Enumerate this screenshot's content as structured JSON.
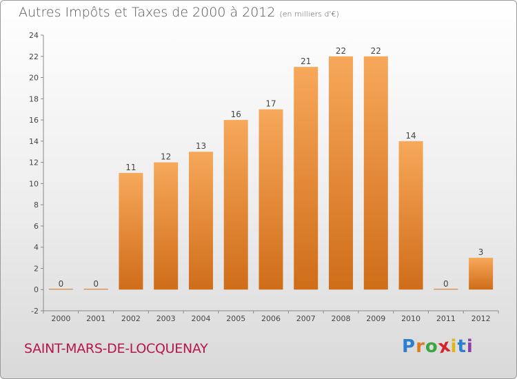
{
  "title": "Autres Impôts et Taxes de 2000 à 2012",
  "unit": "(en milliers d'€)",
  "commune": "SAINT-MARS-DE-LOCQUENAY",
  "brand": {
    "letters": [
      "P",
      "r",
      "o",
      "x",
      "i",
      "t",
      "i"
    ],
    "colors": [
      "#2a7fd0",
      "#e07a1c",
      "#3aa541",
      "#d4232d",
      "#e2b418",
      "#2a7fd0",
      "#8a3fa6"
    ]
  },
  "colors": {
    "bar_light": "#f7a85a",
    "bar_dark": "#cf6d19",
    "axis": "#888888",
    "grid": "#cfcfcf"
  },
  "chart_data": {
    "type": "bar",
    "categories": [
      "2000",
      "2001",
      "2002",
      "2003",
      "2004",
      "2005",
      "2006",
      "2007",
      "2008",
      "2009",
      "2010",
      "2011",
      "2012"
    ],
    "values": [
      0,
      0,
      11,
      12,
      13,
      16,
      17,
      21,
      22,
      22,
      14,
      0,
      3
    ],
    "ylim": [
      -2,
      24
    ],
    "yticks": [
      -2,
      0,
      2,
      4,
      6,
      8,
      10,
      12,
      14,
      16,
      18,
      20,
      22,
      24
    ],
    "grid": false
  }
}
